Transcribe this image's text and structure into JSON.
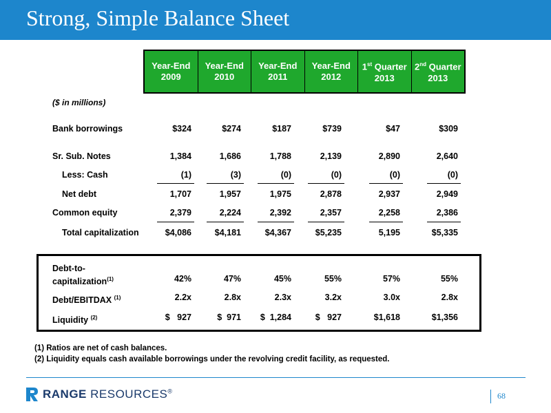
{
  "title": "Strong, Simple Balance Sheet",
  "columns": [
    {
      "line1": "Year-End",
      "line2": "2009"
    },
    {
      "line1": "Year-End",
      "line2": "2010"
    },
    {
      "line1": "Year-End",
      "line2": "2011"
    },
    {
      "line1": "Year-End",
      "line2": "2012"
    },
    {
      "pre": "1",
      "sup": "st",
      "post": " Quarter",
      "line2": "2013"
    },
    {
      "pre": "2",
      "sup": "nd",
      "post": " Quarter",
      "line2": "2013"
    }
  ],
  "units": "($ in millions)",
  "rows": [
    {
      "label": "Bank borrowings",
      "values": [
        "$324",
        "$274",
        "$187",
        "$739",
        "$47",
        "$309"
      ]
    },
    {
      "label": "Sr. Sub. Notes",
      "values": [
        "1,384",
        "1,686",
        "1,788",
        "2,139",
        "2,890",
        "2,640"
      ]
    },
    {
      "label": "Less: Cash",
      "values": [
        "(1)",
        "(3)",
        "(0)",
        "(0)",
        "(0)",
        "(0)"
      ]
    },
    {
      "label": "Net debt",
      "values": [
        "1,707",
        "1,957",
        "1,975",
        "2,878",
        "2,937",
        "2,949"
      ]
    },
    {
      "label": "Common equity",
      "values": [
        "2,379",
        "2,224",
        "2,392",
        "2,357",
        "2,258",
        "2,386"
      ]
    },
    {
      "label": "Total capitalization",
      "values": [
        "$4,086",
        "$4,181",
        "$4,367",
        "$5,235",
        "5,195",
        "$5,335"
      ]
    }
  ],
  "ratios": [
    {
      "label1": "Debt-to-",
      "label2": "capitalization",
      "note": "(1)",
      "values": [
        "42%",
        "47%",
        "45%",
        "55%",
        "57%",
        "55%"
      ]
    },
    {
      "label": "Debt/EBITDAX ",
      "note": "(1)",
      "values": [
        "2.2x",
        "2.8x",
        "2.3x",
        "3.2x",
        "3.0x",
        "2.8x"
      ]
    },
    {
      "label": "Liquidity ",
      "note": "(2)",
      "values": [
        "$   927",
        "$  971",
        "$  1,284",
        "$   927",
        "$1,618",
        "$1,356"
      ]
    }
  ],
  "footnotes": [
    "(1)  Ratios are net of cash balances.",
    "(2)  Liquidity equals cash available borrowings under the revolving credit facility, as requested."
  ],
  "logo": {
    "bold": "RANGE",
    "rest": " RESOURCES",
    "mark": "®"
  },
  "page_number": "68",
  "colors": {
    "title_bar": "#1d86cc",
    "header_green": "#1fa82d"
  }
}
